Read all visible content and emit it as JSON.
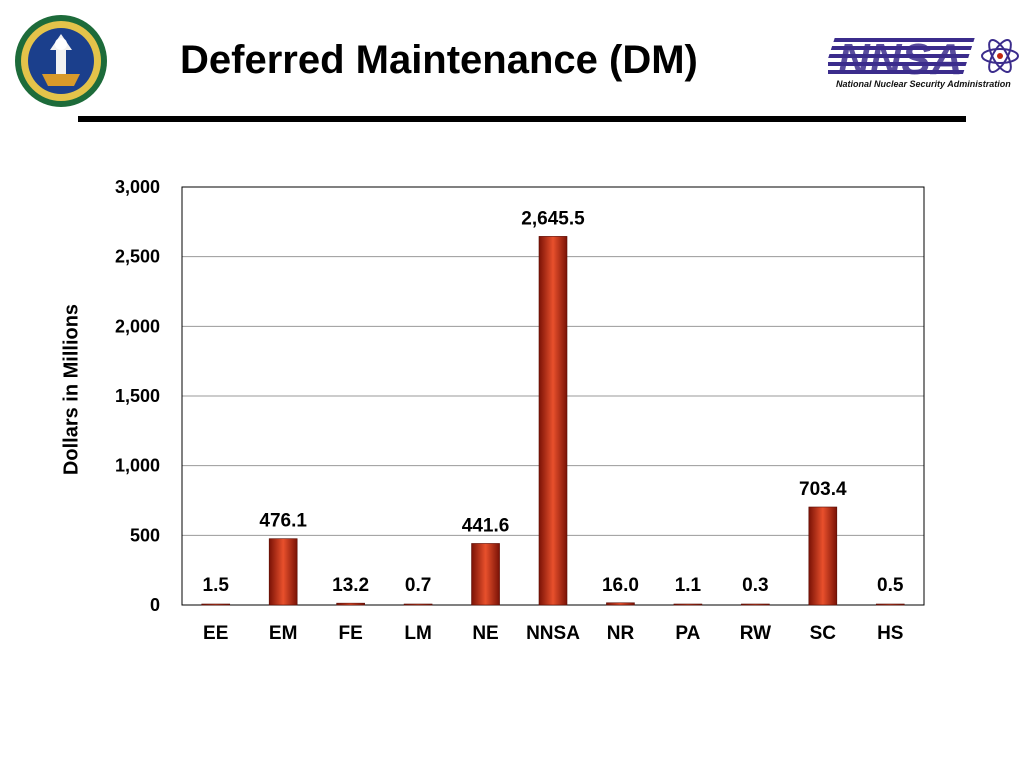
{
  "title": "Deferred Maintenance (DM)",
  "logos": {
    "left_seal": "department-of-energy-seal",
    "right_logo_word": "NNSA",
    "right_logo_tagline": "National Nuclear Security Administration"
  },
  "colors": {
    "bar": "#c0260e",
    "bar_dark": "#7a1206",
    "bar_light": "#e8502c",
    "logo_purple": "#3b2c8c"
  },
  "chart_data": {
    "type": "bar",
    "categories": [
      "EE",
      "EM",
      "FE",
      "LM",
      "NE",
      "NNSA",
      "NR",
      "PA",
      "RW",
      "SC",
      "HS"
    ],
    "values": [
      1.5,
      476.1,
      13.2,
      0.7,
      441.6,
      2645.5,
      16.0,
      1.1,
      0.3,
      703.4,
      0.5
    ],
    "data_labels": [
      "1.5",
      "476.1",
      "13.2",
      "0.7",
      "441.6",
      "2,645.5",
      "16.0",
      "1.1",
      "0.3",
      "703.4",
      "0.5"
    ],
    "ylabel": "Dollars in Millions",
    "ylim": [
      0,
      3000
    ],
    "yticks": [
      0,
      500,
      1000,
      1500,
      2000,
      2500,
      3000
    ],
    "ytick_labels": [
      "0",
      "500",
      "1,000",
      "1,500",
      "2,000",
      "2,500",
      "3,000"
    ],
    "grid": true,
    "legend": "none"
  }
}
